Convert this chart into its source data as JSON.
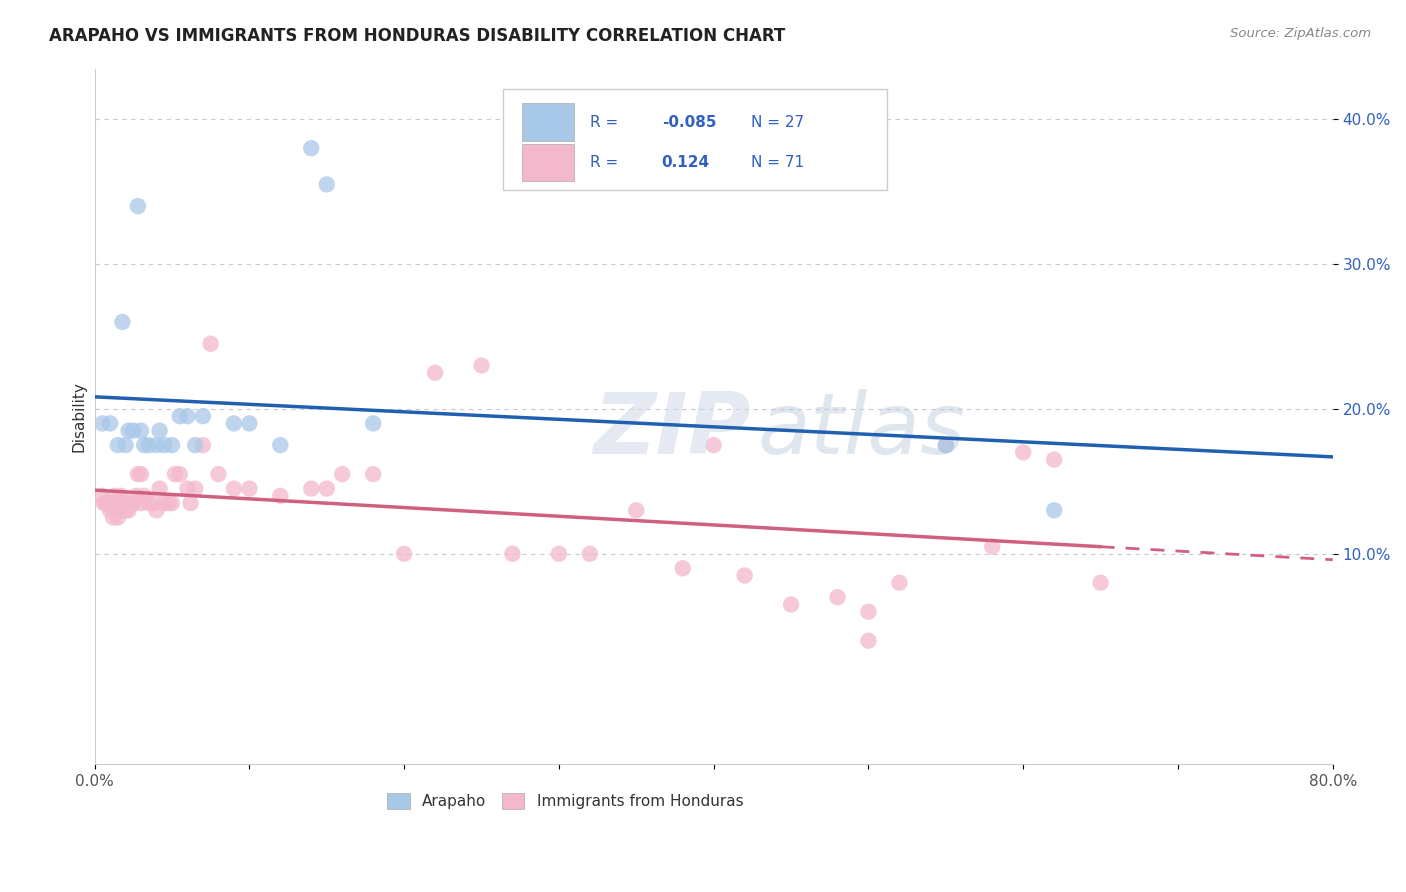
{
  "title": "ARAPAHO VS IMMIGRANTS FROM HONDURAS DISABILITY CORRELATION CHART",
  "source": "Source: ZipAtlas.com",
  "ylabel": "Disability",
  "xlim": [
    0.0,
    0.8
  ],
  "ylim": [
    -0.045,
    0.435
  ],
  "yticks": [
    0.1,
    0.2,
    0.3,
    0.4
  ],
  "yticklabels": [
    "10.0%",
    "20.0%",
    "30.0%",
    "40.0%"
  ],
  "watermark_zip": "ZIP",
  "watermark_atlas": "atlas",
  "arapaho_color": "#a8c8e8",
  "honduras_color": "#f4b8cc",
  "arapaho_line_color": "#2060b0",
  "honduras_line_color": "#d06080",
  "background_color": "#ffffff",
  "grid_color": "#c8c8d8",
  "legend_box_color": "#dce6f0",
  "legend_pink_color": "#f4b8cc",
  "legend_text_color": "#3060c0",
  "arapaho_R": "-0.085",
  "arapaho_N": "27",
  "honduras_R": "0.124",
  "honduras_N": "71",
  "arapaho_x": [
    0.005,
    0.01,
    0.015,
    0.018,
    0.02,
    0.022,
    0.025,
    0.028,
    0.03,
    0.032,
    0.035,
    0.04,
    0.042,
    0.045,
    0.05,
    0.055,
    0.06,
    0.065,
    0.07,
    0.09,
    0.1,
    0.12,
    0.14,
    0.15,
    0.18,
    0.55,
    0.62
  ],
  "arapaho_y": [
    0.19,
    0.19,
    0.175,
    0.26,
    0.175,
    0.185,
    0.185,
    0.34,
    0.185,
    0.175,
    0.175,
    0.175,
    0.185,
    0.175,
    0.175,
    0.195,
    0.195,
    0.175,
    0.195,
    0.19,
    0.19,
    0.175,
    0.38,
    0.355,
    0.19,
    0.175,
    0.13
  ],
  "honduras_x": [
    0.005,
    0.006,
    0.007,
    0.008,
    0.009,
    0.01,
    0.01,
    0.011,
    0.012,
    0.012,
    0.013,
    0.013,
    0.014,
    0.015,
    0.015,
    0.016,
    0.017,
    0.018,
    0.019,
    0.02,
    0.02,
    0.022,
    0.024,
    0.025,
    0.027,
    0.028,
    0.03,
    0.03,
    0.032,
    0.035,
    0.038,
    0.04,
    0.042,
    0.045,
    0.048,
    0.05,
    0.052,
    0.055,
    0.06,
    0.062,
    0.065,
    0.07,
    0.075,
    0.08,
    0.09,
    0.1,
    0.12,
    0.14,
    0.15,
    0.16,
    0.18,
    0.2,
    0.22,
    0.25,
    0.27,
    0.3,
    0.32,
    0.35,
    0.38,
    0.4,
    0.42,
    0.45,
    0.48,
    0.5,
    0.52,
    0.55,
    0.58,
    0.6,
    0.62,
    0.65,
    0.5
  ],
  "honduras_y": [
    0.14,
    0.135,
    0.135,
    0.135,
    0.135,
    0.13,
    0.135,
    0.135,
    0.125,
    0.135,
    0.135,
    0.14,
    0.13,
    0.125,
    0.135,
    0.13,
    0.14,
    0.135,
    0.135,
    0.13,
    0.135,
    0.13,
    0.135,
    0.135,
    0.14,
    0.155,
    0.135,
    0.155,
    0.14,
    0.135,
    0.135,
    0.13,
    0.145,
    0.135,
    0.135,
    0.135,
    0.155,
    0.155,
    0.145,
    0.135,
    0.145,
    0.175,
    0.245,
    0.155,
    0.145,
    0.145,
    0.14,
    0.145,
    0.145,
    0.155,
    0.155,
    0.1,
    0.225,
    0.23,
    0.1,
    0.1,
    0.1,
    0.13,
    0.09,
    0.175,
    0.085,
    0.065,
    0.07,
    0.06,
    0.08,
    0.175,
    0.105,
    0.17,
    0.165,
    0.08,
    0.04
  ]
}
